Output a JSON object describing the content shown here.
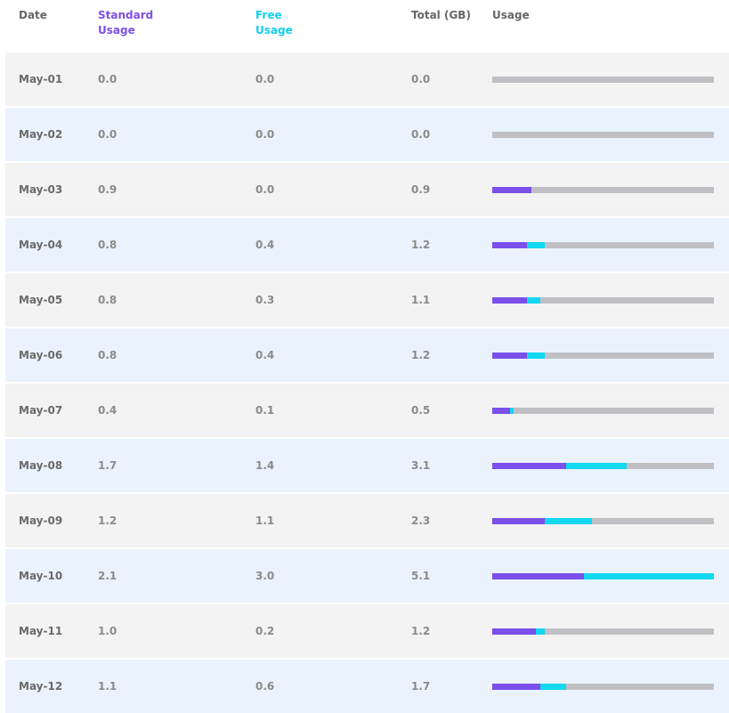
{
  "table": {
    "headers": [
      "Date",
      "Standard Usage",
      "Free Usage",
      "Total (GB)",
      "Usage"
    ],
    "rows": [
      [
        "May-01",
        "0.0",
        "0.0",
        "0.0"
      ],
      [
        "May-02",
        "0.0",
        "0.0",
        "0.0"
      ],
      [
        "May-03",
        "0.9",
        "0.0",
        "0.9"
      ],
      [
        "May-04",
        "0.8",
        "0.4",
        "1.2"
      ],
      [
        "May-05",
        "0.8",
        "0.3",
        "1.1"
      ],
      [
        "May-06",
        "0.8",
        "0.4",
        "1.2"
      ],
      [
        "May-07",
        "0.4",
        "0.1",
        "0.5"
      ],
      [
        "May-08",
        "1.7",
        "1.4",
        "3.1"
      ],
      [
        "May-09",
        "1.2",
        "1.1",
        "2.3"
      ],
      [
        "May-10",
        "2.1",
        "3.0",
        "5.1"
      ],
      [
        "May-11",
        "1.0",
        "0.2",
        "1.2"
      ],
      [
        "May-12",
        "1.1",
        "0.6",
        "1.7"
      ]
    ],
    "colors": {
      "standard": "#7b4fe9",
      "free": "#12d8f0",
      "remaining": "#c0c0c4"
    }
  }
}
